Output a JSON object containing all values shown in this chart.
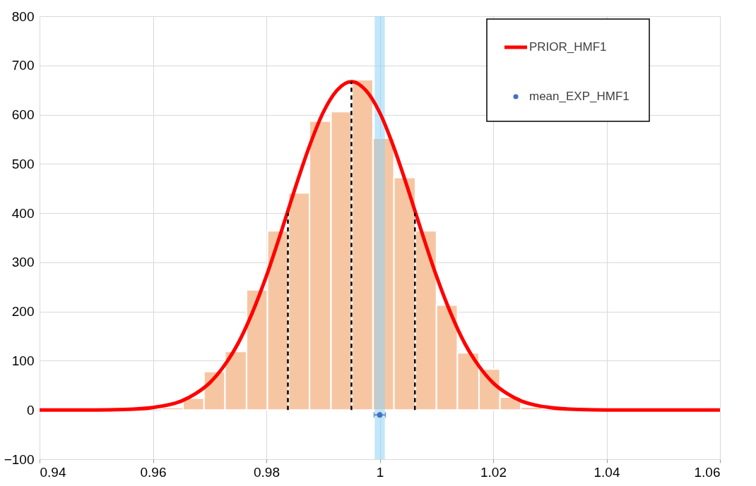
{
  "chart_data": {
    "type": "histogram",
    "xlim": [
      0.94,
      1.06
    ],
    "xticks": [
      0.94,
      0.96,
      0.98,
      1,
      1.02,
      1.04,
      1.06
    ],
    "ylim": [
      -100,
      800
    ],
    "yticks": [
      -100,
      0,
      100,
      200,
      300,
      400,
      500,
      600,
      700,
      800
    ],
    "grid": true,
    "legend": "top right",
    "bands": [
      {
        "axis": "x",
        "from": 0.9991,
        "to": 1.0009,
        "color": "#8fd3f7"
      }
    ],
    "series": [
      {
        "color": "#f6c6a3",
        "bins": [
          0.9616,
          0.9653,
          0.969,
          0.9727,
          0.9765,
          0.9802,
          0.9839,
          0.9876,
          0.9914,
          0.9951,
          0.9988,
          1.0025,
          1.0063,
          1.01,
          1.0137,
          1.0175,
          1.0212,
          1.0249,
          1.0286
        ],
        "values": [
          5,
          24,
          78,
          119,
          244,
          364,
          441,
          587,
          606,
          671,
          552,
          472,
          364,
          213,
          116,
          83,
          26,
          6
        ]
      },
      {
        "type": "line",
        "name": "PRIOR_HMF1",
        "color": "#ff0000",
        "x": [
          0.94,
          0.945,
          0.95,
          0.955,
          0.96,
          0.965,
          0.9675,
          0.97,
          0.9725,
          0.975,
          0.9775,
          0.98,
          0.9825,
          0.985,
          0.9875,
          0.99,
          0.9925,
          0.995,
          0.9975,
          1.0,
          1.0025,
          1.005,
          1.0075,
          1.01,
          1.0125,
          1.015,
          1.0175,
          1.02,
          1.0225,
          1.025,
          1.03,
          1.035,
          1.04,
          1.045,
          1.05,
          1.06
        ],
        "values": [
          0,
          0,
          0,
          1,
          5,
          18,
          33,
          55,
          89,
          135,
          197,
          272,
          358,
          448,
          533,
          604,
          650,
          667,
          650,
          604,
          533,
          448,
          358,
          272,
          197,
          135,
          89,
          55,
          33,
          18,
          5,
          1,
          0,
          0,
          0,
          0
        ]
      },
      {
        "type": "line",
        "color": "#000000",
        "line_style": "dashed",
        "x": [
          0.9838,
          0.9838
        ],
        "values": [
          0,
          400
        ]
      },
      {
        "type": "line",
        "color": "#000000",
        "line_style": "dashed",
        "x": [
          0.995,
          0.995
        ],
        "values": [
          0,
          667
        ]
      },
      {
        "type": "line",
        "color": "#000000",
        "line_style": "dashed",
        "x": [
          1.0062,
          1.0062
        ],
        "values": [
          0,
          400
        ]
      },
      {
        "type": "scatter",
        "name": "mean_EXP_HMF1",
        "color": "#4472c4",
        "marker": "circle",
        "x": [
          1.0
        ],
        "values": [
          -10
        ],
        "xerrors": [
          0.001
        ]
      }
    ]
  }
}
